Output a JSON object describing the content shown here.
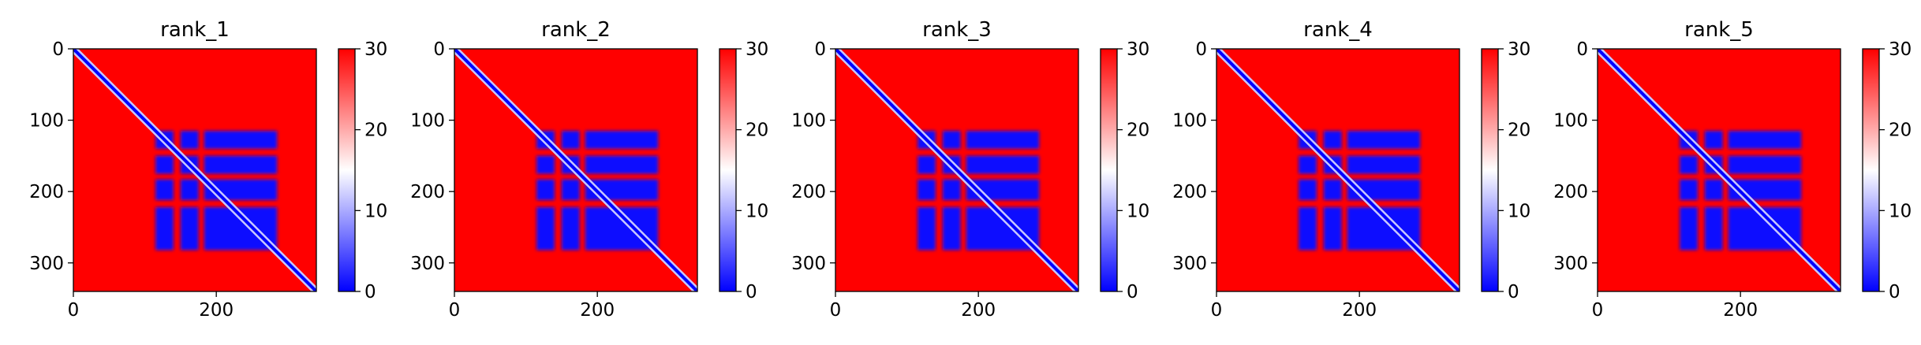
{
  "chart_data": [
    {
      "type": "heatmap",
      "title": "rank_1",
      "colormap": "bwr",
      "x_range": [
        0,
        340
      ],
      "y_range": [
        0,
        340
      ],
      "y_inverted": true,
      "x_ticks": [
        "0",
        "200"
      ],
      "y_ticks": [
        "0",
        "100",
        "200",
        "300"
      ],
      "colorbar": {
        "range": [
          0,
          30
        ],
        "ticks": [
          "0",
          "10",
          "20",
          "30"
        ]
      },
      "diagonal_value": 0,
      "background_value": 30,
      "low_blocks": [
        {
          "rows": [
            115,
            140
          ],
          "cols": [
            115,
            140
          ],
          "value": 0
        },
        {
          "rows": [
            115,
            140
          ],
          "cols": [
            150,
            175
          ],
          "value": 0
        },
        {
          "rows": [
            115,
            140
          ],
          "cols": [
            183,
            285
          ],
          "value": 0
        },
        {
          "rows": [
            150,
            175
          ],
          "cols": [
            115,
            140
          ],
          "value": 0
        },
        {
          "rows": [
            150,
            175
          ],
          "cols": [
            150,
            175
          ],
          "value": 0
        },
        {
          "rows": [
            150,
            175
          ],
          "cols": [
            183,
            285
          ],
          "value": 0
        },
        {
          "rows": [
            183,
            212
          ],
          "cols": [
            115,
            140
          ],
          "value": 0
        },
        {
          "rows": [
            183,
            212
          ],
          "cols": [
            150,
            175
          ],
          "value": 0
        },
        {
          "rows": [
            183,
            212
          ],
          "cols": [
            183,
            285
          ],
          "value": 0
        },
        {
          "rows": [
            222,
            282
          ],
          "cols": [
            115,
            140
          ],
          "value": 0
        },
        {
          "rows": [
            222,
            282
          ],
          "cols": [
            150,
            175
          ],
          "value": 0
        },
        {
          "rows": [
            222,
            282
          ],
          "cols": [
            183,
            285
          ],
          "value": 0
        }
      ]
    },
    {
      "type": "heatmap",
      "title": "rank_2",
      "colormap": "bwr",
      "x_range": [
        0,
        340
      ],
      "y_range": [
        0,
        340
      ],
      "y_inverted": true,
      "x_ticks": [
        "0",
        "200"
      ],
      "y_ticks": [
        "0",
        "100",
        "200",
        "300"
      ],
      "colorbar": {
        "range": [
          0,
          30
        ],
        "ticks": [
          "0",
          "10",
          "20",
          "30"
        ]
      },
      "diagonal_value": 0,
      "background_value": 30,
      "low_blocks": [
        {
          "rows": [
            115,
            140
          ],
          "cols": [
            115,
            140
          ],
          "value": 0
        },
        {
          "rows": [
            115,
            140
          ],
          "cols": [
            150,
            175
          ],
          "value": 0
        },
        {
          "rows": [
            115,
            140
          ],
          "cols": [
            183,
            285
          ],
          "value": 0
        },
        {
          "rows": [
            150,
            175
          ],
          "cols": [
            115,
            140
          ],
          "value": 0
        },
        {
          "rows": [
            150,
            175
          ],
          "cols": [
            150,
            175
          ],
          "value": 0
        },
        {
          "rows": [
            150,
            175
          ],
          "cols": [
            183,
            285
          ],
          "value": 0
        },
        {
          "rows": [
            183,
            212
          ],
          "cols": [
            115,
            140
          ],
          "value": 0
        },
        {
          "rows": [
            183,
            212
          ],
          "cols": [
            150,
            175
          ],
          "value": 0
        },
        {
          "rows": [
            183,
            212
          ],
          "cols": [
            183,
            285
          ],
          "value": 0
        },
        {
          "rows": [
            222,
            282
          ],
          "cols": [
            115,
            140
          ],
          "value": 0
        },
        {
          "rows": [
            222,
            282
          ],
          "cols": [
            150,
            175
          ],
          "value": 0
        },
        {
          "rows": [
            222,
            282
          ],
          "cols": [
            183,
            285
          ],
          "value": 0
        }
      ]
    },
    {
      "type": "heatmap",
      "title": "rank_3",
      "colormap": "bwr",
      "x_range": [
        0,
        340
      ],
      "y_range": [
        0,
        340
      ],
      "y_inverted": true,
      "x_ticks": [
        "0",
        "200"
      ],
      "y_ticks": [
        "0",
        "100",
        "200",
        "300"
      ],
      "colorbar": {
        "range": [
          0,
          30
        ],
        "ticks": [
          "0",
          "10",
          "20",
          "30"
        ]
      },
      "diagonal_value": 0,
      "background_value": 30,
      "low_blocks": [
        {
          "rows": [
            115,
            140
          ],
          "cols": [
            115,
            140
          ],
          "value": 0
        },
        {
          "rows": [
            115,
            140
          ],
          "cols": [
            150,
            175
          ],
          "value": 0
        },
        {
          "rows": [
            115,
            140
          ],
          "cols": [
            183,
            285
          ],
          "value": 0
        },
        {
          "rows": [
            150,
            175
          ],
          "cols": [
            115,
            140
          ],
          "value": 0
        },
        {
          "rows": [
            150,
            175
          ],
          "cols": [
            150,
            175
          ],
          "value": 0
        },
        {
          "rows": [
            150,
            175
          ],
          "cols": [
            183,
            285
          ],
          "value": 0
        },
        {
          "rows": [
            183,
            212
          ],
          "cols": [
            115,
            140
          ],
          "value": 0
        },
        {
          "rows": [
            183,
            212
          ],
          "cols": [
            150,
            175
          ],
          "value": 0
        },
        {
          "rows": [
            183,
            212
          ],
          "cols": [
            183,
            285
          ],
          "value": 0
        },
        {
          "rows": [
            222,
            282
          ],
          "cols": [
            115,
            140
          ],
          "value": 0
        },
        {
          "rows": [
            222,
            282
          ],
          "cols": [
            150,
            175
          ],
          "value": 0
        },
        {
          "rows": [
            222,
            282
          ],
          "cols": [
            183,
            285
          ],
          "value": 0
        }
      ]
    },
    {
      "type": "heatmap",
      "title": "rank_4",
      "colormap": "bwr",
      "x_range": [
        0,
        340
      ],
      "y_range": [
        0,
        340
      ],
      "y_inverted": true,
      "x_ticks": [
        "0",
        "200"
      ],
      "y_ticks": [
        "0",
        "100",
        "200",
        "300"
      ],
      "colorbar": {
        "range": [
          0,
          30
        ],
        "ticks": [
          "0",
          "10",
          "20",
          "30"
        ]
      },
      "diagonal_value": 0,
      "background_value": 30,
      "low_blocks": [
        {
          "rows": [
            115,
            140
          ],
          "cols": [
            115,
            140
          ],
          "value": 0
        },
        {
          "rows": [
            115,
            140
          ],
          "cols": [
            150,
            175
          ],
          "value": 0
        },
        {
          "rows": [
            115,
            140
          ],
          "cols": [
            183,
            285
          ],
          "value": 0
        },
        {
          "rows": [
            150,
            175
          ],
          "cols": [
            115,
            140
          ],
          "value": 0
        },
        {
          "rows": [
            150,
            175
          ],
          "cols": [
            150,
            175
          ],
          "value": 0
        },
        {
          "rows": [
            150,
            175
          ],
          "cols": [
            183,
            285
          ],
          "value": 0
        },
        {
          "rows": [
            183,
            212
          ],
          "cols": [
            115,
            140
          ],
          "value": 0
        },
        {
          "rows": [
            183,
            212
          ],
          "cols": [
            150,
            175
          ],
          "value": 0
        },
        {
          "rows": [
            183,
            212
          ],
          "cols": [
            183,
            285
          ],
          "value": 0
        },
        {
          "rows": [
            222,
            282
          ],
          "cols": [
            115,
            140
          ],
          "value": 0
        },
        {
          "rows": [
            222,
            282
          ],
          "cols": [
            150,
            175
          ],
          "value": 0
        },
        {
          "rows": [
            222,
            282
          ],
          "cols": [
            183,
            285
          ],
          "value": 0
        }
      ]
    },
    {
      "type": "heatmap",
      "title": "rank_5",
      "colormap": "bwr",
      "x_range": [
        0,
        340
      ],
      "y_range": [
        0,
        340
      ],
      "y_inverted": true,
      "x_ticks": [
        "0",
        "200"
      ],
      "y_ticks": [
        "0",
        "100",
        "200",
        "300"
      ],
      "colorbar": {
        "range": [
          0,
          30
        ],
        "ticks": [
          "0",
          "10",
          "20",
          "30"
        ]
      },
      "diagonal_value": 0,
      "background_value": 30,
      "low_blocks": [
        {
          "rows": [
            115,
            140
          ],
          "cols": [
            115,
            140
          ],
          "value": 0
        },
        {
          "rows": [
            115,
            140
          ],
          "cols": [
            150,
            175
          ],
          "value": 0
        },
        {
          "rows": [
            115,
            140
          ],
          "cols": [
            183,
            285
          ],
          "value": 0
        },
        {
          "rows": [
            150,
            175
          ],
          "cols": [
            115,
            140
          ],
          "value": 0
        },
        {
          "rows": [
            150,
            175
          ],
          "cols": [
            150,
            175
          ],
          "value": 0
        },
        {
          "rows": [
            150,
            175
          ],
          "cols": [
            183,
            285
          ],
          "value": 0
        },
        {
          "rows": [
            183,
            212
          ],
          "cols": [
            115,
            140
          ],
          "value": 0
        },
        {
          "rows": [
            183,
            212
          ],
          "cols": [
            150,
            175
          ],
          "value": 0
        },
        {
          "rows": [
            183,
            212
          ],
          "cols": [
            183,
            285
          ],
          "value": 0
        },
        {
          "rows": [
            222,
            282
          ],
          "cols": [
            115,
            140
          ],
          "value": 0
        },
        {
          "rows": [
            222,
            282
          ],
          "cols": [
            150,
            175
          ],
          "value": 0
        },
        {
          "rows": [
            222,
            282
          ],
          "cols": [
            183,
            285
          ],
          "value": 0
        }
      ]
    }
  ]
}
